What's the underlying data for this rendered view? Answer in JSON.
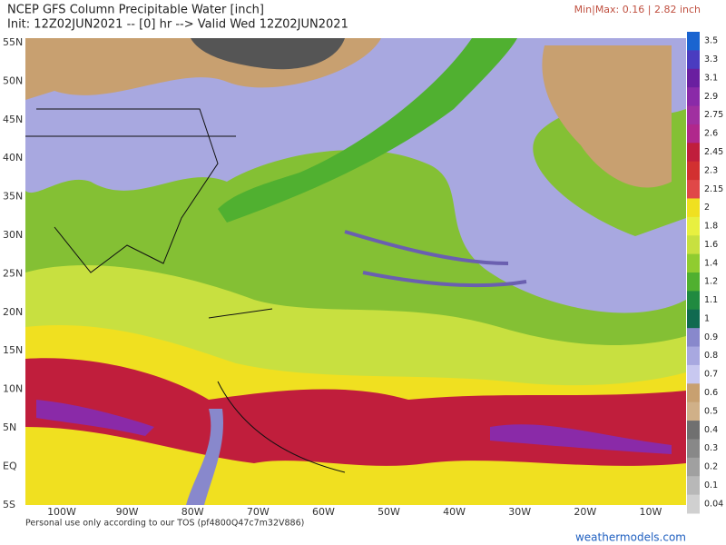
{
  "header": {
    "title": "NCEP GFS Column Precipitable Water [inch]",
    "init": "Init: 12Z02JUN2021 -- [0] hr --> Valid Wed 12Z02JUN2021",
    "minmax": "Min|Max: 0.16 | 2.82 inch"
  },
  "map": {
    "lat_labels": [
      "55N",
      "50N",
      "45N",
      "40N",
      "35N",
      "30N",
      "25N",
      "20N",
      "15N",
      "10N",
      "5N",
      "EQ",
      "5S"
    ],
    "lon_labels": [
      "100W",
      "90W",
      "80W",
      "70W",
      "60W",
      "50W",
      "40W",
      "30W",
      "20W",
      "10W"
    ]
  },
  "colorbar": [
    {
      "label": "3.5",
      "color": "#1a64d0"
    },
    {
      "label": "3.3",
      "color": "#4a3cc0"
    },
    {
      "label": "3.1",
      "color": "#6a1fa0"
    },
    {
      "label": "2.9",
      "color": "#8a2aa8"
    },
    {
      "label": "2.75",
      "color": "#a030a0"
    },
    {
      "label": "2.6",
      "color": "#b0288c"
    },
    {
      "label": "2.45",
      "color": "#c01e3c"
    },
    {
      "label": "2.3",
      "color": "#d23030"
    },
    {
      "label": "2.15",
      "color": "#e04848"
    },
    {
      "label": "2",
      "color": "#f0e020"
    },
    {
      "label": "1.8",
      "color": "#e8f040"
    },
    {
      "label": "1.6",
      "color": "#c8e040"
    },
    {
      "label": "1.4",
      "color": "#90cc30"
    },
    {
      "label": "1.2",
      "color": "#50b030"
    },
    {
      "label": "1.1",
      "color": "#208a40"
    },
    {
      "label": "1",
      "color": "#106a50"
    },
    {
      "label": "0.9",
      "color": "#8888cc"
    },
    {
      "label": "0.8",
      "color": "#a8a8e0"
    },
    {
      "label": "0.7",
      "color": "#c8c8f0"
    },
    {
      "label": "0.6",
      "color": "#c8a070"
    },
    {
      "label": "0.5",
      "color": "#d0b088"
    },
    {
      "label": "0.4",
      "color": "#707070"
    },
    {
      "label": "0.3",
      "color": "#888888"
    },
    {
      "label": "0.2",
      "color": "#a0a0a0"
    },
    {
      "label": "0.1",
      "color": "#b8b8b8"
    },
    {
      "label": "0.04",
      "color": "#d0d0d0"
    }
  ],
  "footer": {
    "tos": "Personal use only according to our TOS (pf4800Q47c7m32V886)",
    "site": "weathermodels.com"
  }
}
